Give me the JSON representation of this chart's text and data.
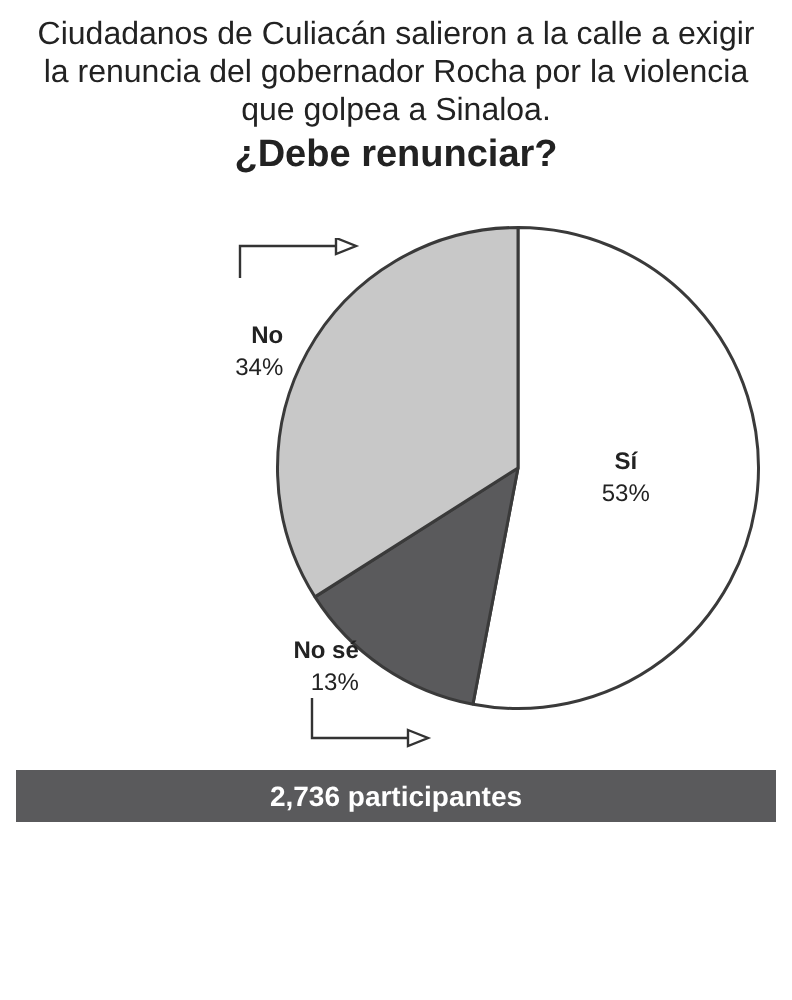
{
  "chart_data": {
    "type": "pie",
    "title": "Ciudadanos de Culiacán salieron a la calle a exigir la renuncia del gobernador Rocha por la violencia que golpea a Sinaloa.",
    "subtitle": "¿Debe renunciar?",
    "categories": [
      "Sí",
      "No sé",
      "No"
    ],
    "values": [
      53,
      13,
      34
    ],
    "value_labels": [
      "53%",
      "13%",
      "34%"
    ],
    "colors": [
      "#ffffff",
      "#5a5a5c",
      "#c8c8c8"
    ],
    "annotations": [
      "2,736 participantes"
    ],
    "legend": false
  }
}
